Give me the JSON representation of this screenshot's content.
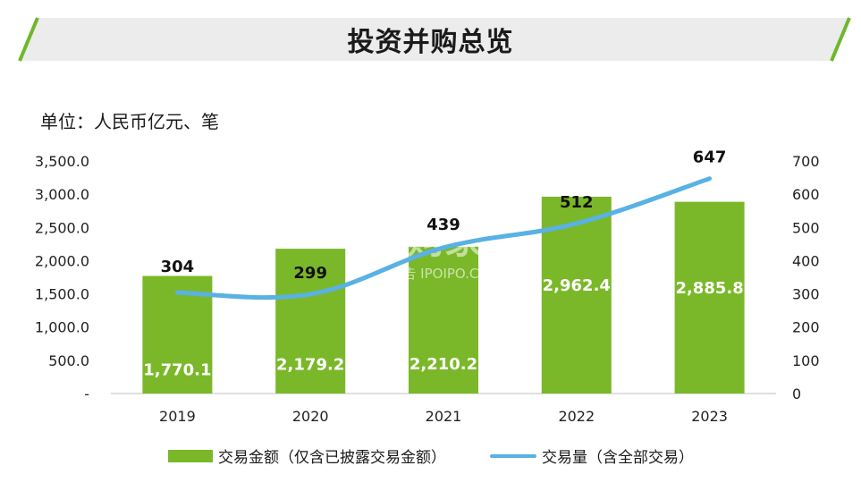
{
  "page": {
    "title": "投资并购总览",
    "unit_label": "单位：人民币亿元、笔",
    "watermark": {
      "brand": "并购家",
      "tagline": "行业报告 IPOIPO.CN"
    }
  },
  "colors": {
    "bar": "#7ab829",
    "line": "#59b1e4",
    "accent_slash": "#6fb82a",
    "band": "#ececec"
  },
  "chart_data": {
    "type": "bar",
    "categories": [
      "2019",
      "2020",
      "2021",
      "2022",
      "2023"
    ],
    "series": [
      {
        "name": "交易金额（仅含已披露交易金额）",
        "type": "bar",
        "axis": "left",
        "values": [
          1770.1,
          2179.2,
          2210.2,
          2962.4,
          2885.8
        ],
        "labels": [
          "1,770.1",
          "2,179.2",
          "2,210.2",
          "2,962.4",
          "2,885.8"
        ]
      },
      {
        "name": "交易量（含全部交易）",
        "type": "line",
        "axis": "right",
        "values": [
          304,
          299,
          439,
          512,
          647
        ],
        "labels": [
          "304",
          "299",
          "439",
          "512",
          "647"
        ]
      }
    ],
    "y_left": {
      "range": [
        0,
        3500
      ],
      "ticks": [
        0,
        500,
        1000,
        1500,
        2000,
        2500,
        3000,
        3500
      ],
      "tick_labels": [
        "-",
        "500.0",
        "1,000.0",
        "1,500.0",
        "2,000.0",
        "2,500.0",
        "3,000.0",
        "3,500.0"
      ]
    },
    "y_right": {
      "range": [
        0,
        700
      ],
      "ticks": [
        0,
        100,
        200,
        300,
        400,
        500,
        600,
        700
      ],
      "tick_labels": [
        "0",
        "100",
        "200",
        "300",
        "400",
        "500",
        "600",
        "700"
      ]
    },
    "grid": false,
    "legend": "bottom"
  }
}
